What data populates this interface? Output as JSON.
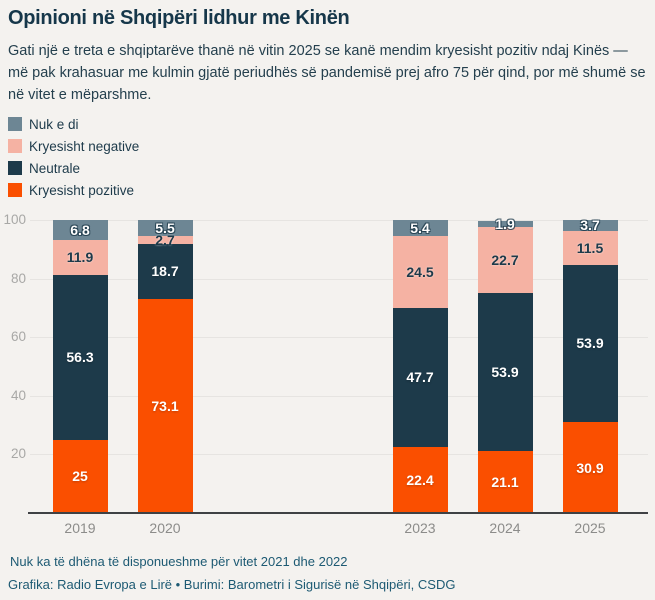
{
  "header": {
    "title": "Opinioni në Shqipëri lidhur me Kinën",
    "subtitle": "Gati një e treta e shqiptarëve thanë në vitin 2025 se kanë mendim kryesisht pozitiv ndaj Kinës — më pak krahasuar me kulmin gjatë periudhës së pandemisë prej afro 75 për qind, por më shumë se në vitet e mëparshme."
  },
  "colors": {
    "background": "#f4f2ef",
    "orange": "#fa4f00",
    "navy": "#1d3a4a",
    "pink": "#f5b2a3",
    "gray": "#6d8694"
  },
  "legend": [
    {
      "label": "Nuk e di",
      "color_key": "gray"
    },
    {
      "label": "Kryesisht negative",
      "color_key": "pink"
    },
    {
      "label": "Neutrale",
      "color_key": "navy"
    },
    {
      "label": "Kryesisht pozitive",
      "color_key": "orange"
    }
  ],
  "chart_data": {
    "type": "bar",
    "stacked": true,
    "title": "Opinioni në Shqipëri lidhur me Kinën",
    "categories": [
      "2019",
      "2020",
      "2023",
      "2024",
      "2025"
    ],
    "category_slots": [
      0,
      1,
      4,
      5,
      6
    ],
    "missing_years_note": "2021, 2022",
    "series": [
      {
        "name": "Kryesisht pozitive",
        "color_key": "orange",
        "label_style": "white",
        "values": [
          25,
          73.1,
          22.4,
          21.1,
          30.9
        ]
      },
      {
        "name": "Neutrale",
        "color_key": "navy",
        "label_style": "white",
        "values": [
          56.3,
          18.7,
          47.7,
          53.9,
          53.9
        ]
      },
      {
        "name": "Kryesisht negative",
        "color_key": "pink",
        "label_style": "navy",
        "values": [
          11.9,
          2.7,
          24.5,
          22.7,
          11.5
        ]
      },
      {
        "name": "Nuk e di",
        "color_key": "gray",
        "label_style": "outlined",
        "values": [
          6.8,
          5.5,
          5.4,
          1.9,
          3.7
        ]
      }
    ],
    "y_ticks": [
      20,
      40,
      60,
      80,
      100
    ],
    "ylim": [
      0,
      100
    ],
    "grid": true,
    "legend_position": "top-left"
  },
  "footer": {
    "note": "Nuk ka të dhëna të disponueshme për vitet 2021 dhe 2022",
    "credit": "Grafika: Radio Evropa e Lirë • Burimi: Barometri i Sigurisë në Shqipëri, CSDG"
  }
}
